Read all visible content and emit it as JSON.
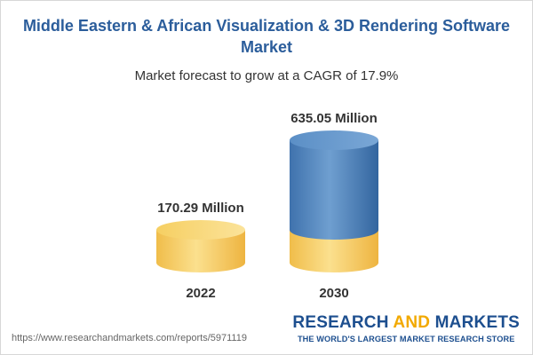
{
  "chart_data": {
    "type": "bar",
    "title": "Middle Eastern & African Visualization & 3D Rendering Software Market",
    "subtitle": "Market forecast to grow at a CAGR of 17.9%",
    "categories": [
      "2022",
      "2030"
    ],
    "values": [
      170.29,
      635.05
    ],
    "value_labels": [
      "170.29 Million",
      "635.05 Million"
    ],
    "base_color": "#f5cd62",
    "growth_color": "#4f84bd"
  },
  "footer": {
    "url": "https://www.researchandmarkets.com/reports/5971119",
    "brand_part1": "RESEARCH ",
    "brand_part2": "AND",
    "brand_part3": " MARKETS",
    "tagline": "THE WORLD'S LARGEST MARKET RESEARCH STORE"
  }
}
